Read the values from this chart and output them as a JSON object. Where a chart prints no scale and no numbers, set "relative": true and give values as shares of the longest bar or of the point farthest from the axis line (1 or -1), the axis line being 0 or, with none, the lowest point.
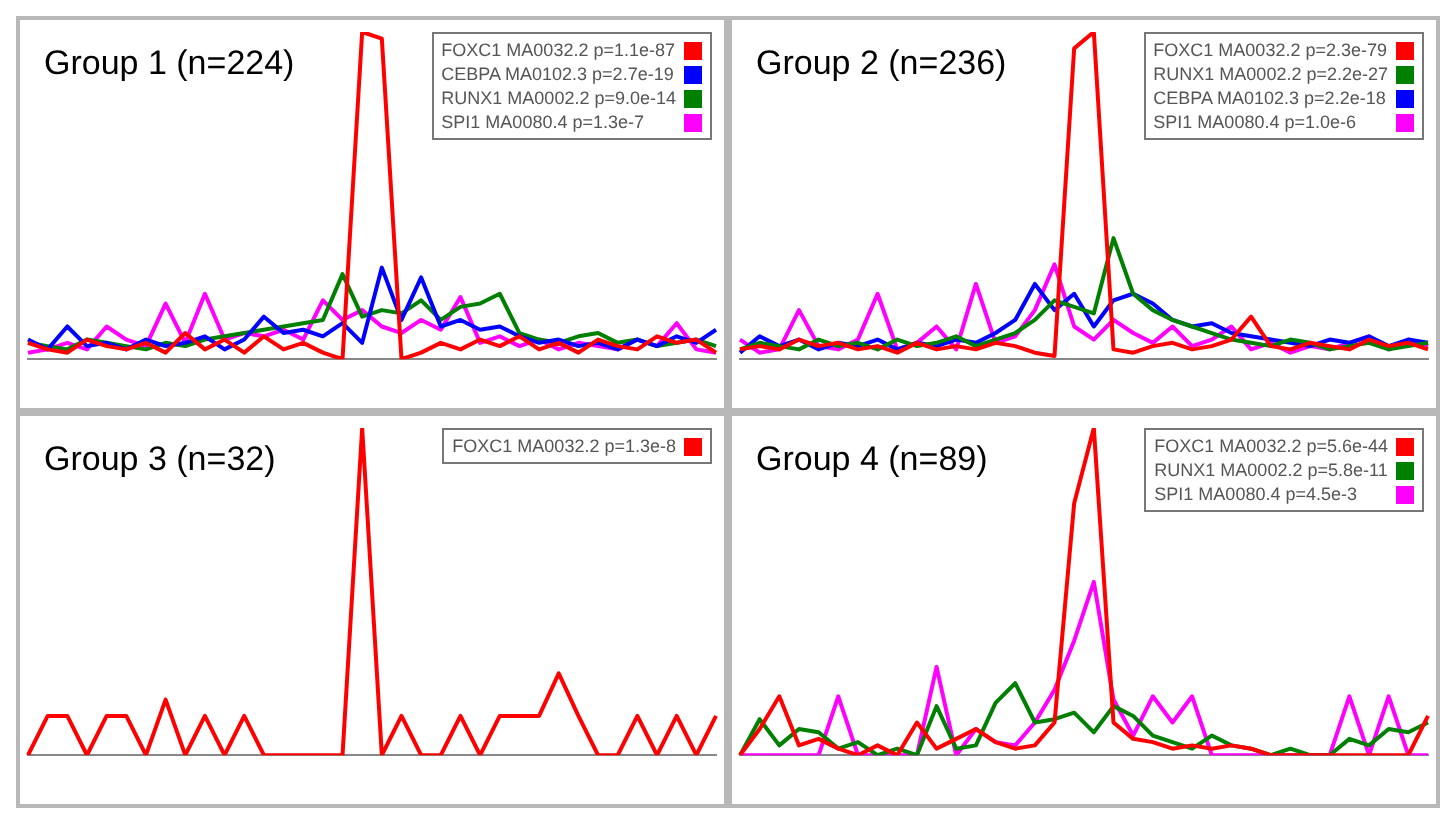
{
  "chart_data": [
    {
      "type": "line",
      "title": "Group 1 (n=224)",
      "relative": true,
      "legend": "top right",
      "categories": [
        null,
        null,
        null,
        null,
        null,
        null,
        null,
        null,
        null,
        null,
        null,
        null,
        null,
        null,
        null,
        null,
        null,
        null,
        null,
        null,
        null,
        null,
        null,
        null,
        null,
        null,
        null,
        null,
        null,
        null,
        null,
        null,
        null,
        null,
        null,
        null
      ],
      "series": [
        {
          "name": "FOXC1 MA0032.2 p=1.1e-87",
          "color": "#ff0000",
          "values": [
            0.05,
            0.03,
            0.02,
            0.06,
            0.04,
            0.03,
            0.05,
            0.02,
            0.08,
            0.03,
            0.06,
            0.02,
            0.07,
            0.03,
            0.05,
            0.02,
            0,
            1.0,
            0.98,
            0,
            0.02,
            0.05,
            0.03,
            0.06,
            0.04,
            0.07,
            0.03,
            0.05,
            0.02,
            0.06,
            0.04,
            0.03,
            0.07,
            0.05,
            0.06,
            0.02
          ]
        },
        {
          "name": "CEBPA MA0102.3 p=2.7e-19",
          "color": "#0000ff",
          "values": [
            0.06,
            0.03,
            0.1,
            0.04,
            0.05,
            0.03,
            0.06,
            0.04,
            0.05,
            0.07,
            0.03,
            0.06,
            0.13,
            0.08,
            0.09,
            0.07,
            0.11,
            0.05,
            0.28,
            0.12,
            0.25,
            0.1,
            0.12,
            0.09,
            0.1,
            0.07,
            0.05,
            0.06,
            0.04,
            0.05,
            0.03,
            0.06,
            0.04,
            0.07,
            0.05,
            0.09
          ]
        },
        {
          "name": "RUNX1 MA0002.2 p=9.0e-14",
          "color": "#008000",
          "values": [
            0.05,
            0.04,
            0.03,
            0.06,
            0.05,
            0.04,
            0.03,
            0.05,
            0.04,
            0.06,
            0.07,
            0.08,
            0.09,
            0.1,
            0.11,
            0.12,
            0.26,
            0.13,
            0.15,
            0.14,
            0.18,
            0.12,
            0.16,
            0.17,
            0.2,
            0.08,
            0.06,
            0.05,
            0.07,
            0.08,
            0.05,
            0.06,
            0.04,
            0.05,
            0.06,
            0.04
          ]
        },
        {
          "name": "SPI1 MA0080.4 p=1.3e-7",
          "color": "#ff00ff",
          "values": [
            0.02,
            0.03,
            0.05,
            0.03,
            0.1,
            0.06,
            0.04,
            0.17,
            0.05,
            0.2,
            0.06,
            0.08,
            0.07,
            0.09,
            0.06,
            0.18,
            0.12,
            0.15,
            0.1,
            0.08,
            0.12,
            0.09,
            0.19,
            0.05,
            0.07,
            0.04,
            0.06,
            0.03,
            0.05,
            0.04,
            0.03,
            0.06,
            0.04,
            0.11,
            0.03,
            0.02
          ]
        }
      ]
    },
    {
      "type": "line",
      "title": "Group 2 (n=236)",
      "relative": true,
      "legend": "top right",
      "categories": [
        null,
        null,
        null,
        null,
        null,
        null,
        null,
        null,
        null,
        null,
        null,
        null,
        null,
        null,
        null,
        null,
        null,
        null,
        null,
        null,
        null,
        null,
        null,
        null,
        null,
        null,
        null,
        null,
        null,
        null,
        null,
        null,
        null,
        null,
        null,
        null
      ],
      "series": [
        {
          "name": "FOXC1 MA0032.2 p=2.3e-79",
          "color": "#ff0000",
          "values": [
            0.03,
            0.04,
            0.03,
            0.06,
            0.04,
            0.05,
            0.03,
            0.04,
            0.02,
            0.05,
            0.03,
            0.04,
            0.03,
            0.05,
            0.04,
            0.02,
            0.01,
            0.95,
            1.0,
            0.03,
            0.02,
            0.04,
            0.05,
            0.03,
            0.04,
            0.06,
            0.13,
            0.04,
            0.03,
            0.05,
            0.04,
            0.03,
            0.06,
            0.04,
            0.05,
            0.03
          ]
        },
        {
          "name": "RUNX1 MA0002.2 p=2.2e-27",
          "color": "#008000",
          "values": [
            0.03,
            0.05,
            0.04,
            0.03,
            0.06,
            0.04,
            0.05,
            0.03,
            0.06,
            0.04,
            0.05,
            0.07,
            0.04,
            0.06,
            0.08,
            0.12,
            0.18,
            0.16,
            0.14,
            0.37,
            0.2,
            0.15,
            0.12,
            0.1,
            0.08,
            0.06,
            0.05,
            0.04,
            0.06,
            0.05,
            0.03,
            0.04,
            0.05,
            0.03,
            0.04,
            0.05
          ]
        },
        {
          "name": "CEBPA MA0102.3 p=2.2e-18",
          "color": "#0000ff",
          "values": [
            0.02,
            0.07,
            0.04,
            0.06,
            0.03,
            0.05,
            0.04,
            0.06,
            0.03,
            0.05,
            0.04,
            0.06,
            0.05,
            0.08,
            0.12,
            0.23,
            0.15,
            0.2,
            0.1,
            0.18,
            0.2,
            0.17,
            0.12,
            0.1,
            0.11,
            0.08,
            0.07,
            0.06,
            0.05,
            0.04,
            0.06,
            0.05,
            0.07,
            0.04,
            0.06,
            0.05
          ]
        },
        {
          "name": "SPI1 MA0080.4 p=1.0e-6",
          "color": "#ff00ff",
          "values": [
            0.06,
            0.02,
            0.03,
            0.15,
            0.04,
            0.03,
            0.06,
            0.2,
            0.03,
            0.05,
            0.1,
            0.03,
            0.23,
            0.05,
            0.07,
            0.15,
            0.29,
            0.1,
            0.06,
            0.12,
            0.08,
            0.05,
            0.1,
            0.04,
            0.06,
            0.1,
            0.03,
            0.05,
            0.02,
            0.04,
            0.03,
            0.05,
            0.07,
            0.03,
            0.06,
            0.04
          ]
        }
      ]
    },
    {
      "type": "line",
      "title": "Group 3 (n=32)",
      "relative": true,
      "legend": "top right",
      "categories": [
        null,
        null,
        null,
        null,
        null,
        null,
        null,
        null,
        null,
        null,
        null,
        null,
        null,
        null,
        null,
        null,
        null,
        null,
        null,
        null,
        null,
        null,
        null,
        null,
        null,
        null,
        null,
        null,
        null,
        null,
        null,
        null,
        null,
        null,
        null,
        null
      ],
      "series": [
        {
          "name": "FOXC1 MA0032.2 p=1.3e-8",
          "color": "#ff0000",
          "values": [
            0,
            0.12,
            0.12,
            0,
            0.12,
            0.12,
            0,
            0.17,
            0,
            0.12,
            0,
            0.12,
            0,
            0,
            0,
            0,
            0,
            1.0,
            0,
            0.12,
            0,
            0,
            0.12,
            0,
            0.12,
            0.12,
            0.12,
            0.25,
            0.12,
            0,
            0,
            0.12,
            0,
            0.12,
            0,
            0.12
          ]
        }
      ]
    },
    {
      "type": "line",
      "title": "Group 4 (n=89)",
      "relative": true,
      "legend": "top right",
      "categories": [
        null,
        null,
        null,
        null,
        null,
        null,
        null,
        null,
        null,
        null,
        null,
        null,
        null,
        null,
        null,
        null,
        null,
        null,
        null,
        null,
        null,
        null,
        null,
        null,
        null,
        null,
        null,
        null,
        null,
        null,
        null,
        null,
        null,
        null,
        null,
        null
      ],
      "series": [
        {
          "name": "FOXC1 MA0032.2 p=5.6e-44",
          "color": "#ff0000",
          "values": [
            0,
            0.08,
            0.18,
            0.03,
            0.05,
            0.02,
            0,
            0.03,
            0,
            0.1,
            0.02,
            0.05,
            0.08,
            0.04,
            0.02,
            0.03,
            0.1,
            0.77,
            1.0,
            0.1,
            0.05,
            0.04,
            0.02,
            0.03,
            0.02,
            0.03,
            0.02,
            0,
            0,
            0,
            0,
            0,
            0,
            0,
            0,
            0.12
          ]
        },
        {
          "name": "RUNX1 MA0002.2 p=5.8e-11",
          "color": "#008000",
          "values": [
            0,
            0.11,
            0.03,
            0.08,
            0.07,
            0.02,
            0.04,
            0,
            0.02,
            0,
            0.15,
            0.02,
            0.03,
            0.16,
            0.22,
            0.1,
            0.11,
            0.13,
            0.07,
            0.15,
            0.12,
            0.06,
            0.04,
            0.02,
            0.06,
            0.03,
            0.02,
            0,
            0.02,
            0,
            0,
            0.05,
            0.03,
            0.08,
            0.07,
            0.1
          ]
        },
        {
          "name": "SPI1 MA0080.4 p=4.5e-3",
          "color": "#ff00ff",
          "values": [
            0,
            0,
            0,
            0,
            0,
            0.18,
            0,
            0,
            0,
            0,
            0.27,
            0,
            0.08,
            0.04,
            0.03,
            0.1,
            0.2,
            0.35,
            0.53,
            0.17,
            0.06,
            0.18,
            0.1,
            0.18,
            0,
            0,
            0,
            0,
            0,
            0,
            0,
            0.18,
            0,
            0.18,
            0,
            0
          ]
        }
      ]
    }
  ]
}
